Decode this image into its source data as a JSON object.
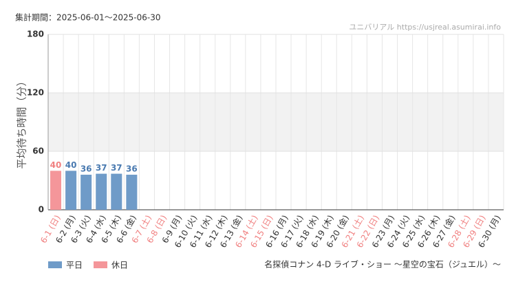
{
  "chart_data": {
    "type": "bar",
    "title": "集計期間：2025-06-01〜2025-06-30",
    "watermark": "ユニバリアル  https://usjreal.asumirai.info",
    "y_label": "平均待ち時間（分）",
    "subtitle": "名探偵コナン 4-D ライブ・ショー ～星空の宝石（ジュエル）～",
    "categories": [
      "6-1 (日)",
      "6-2 (月)",
      "6-3 (火)",
      "6-4 (水)",
      "6-5 (木)",
      "6-6 (金)",
      "6-7 (土)",
      "6-8 (日)",
      "6-9 (月)",
      "6-10 (火)",
      "6-11 (水)",
      "6-12 (木)",
      "6-13 (金)",
      "6-14 (土)",
      "6-15 (日)",
      "6-16 (月)",
      "6-17 (火)",
      "6-18 (水)",
      "6-19 (木)",
      "6-20 (金)",
      "6-21 (土)",
      "6-22 (日)",
      "6-23 (月)",
      "6-24 (火)",
      "6-25 (水)",
      "6-26 (木)",
      "6-27 (金)",
      "6-28 (土)",
      "6-29 (日)",
      "6-30 (月)"
    ],
    "label_colors": [
      "#f08080",
      "#333333",
      "#333333",
      "#333333",
      "#333333",
      "#333333",
      "#f08080",
      "#f08080",
      "#333333",
      "#333333",
      "#333333",
      "#333333",
      "#333333",
      "#f08080",
      "#f08080",
      "#333333",
      "#333333",
      "#333333",
      "#333333",
      "#333333",
      "#f08080",
      "#f08080",
      "#333333",
      "#333333",
      "#333333",
      "#333333",
      "#333333",
      "#f08080",
      "#f08080",
      "#333333"
    ],
    "series": [
      {
        "name": "平日",
        "color": "#6f9bc8",
        "label_color": "#4a7ab0",
        "values": [
          null,
          40,
          36,
          37,
          37,
          36,
          null,
          null,
          null,
          null,
          null,
          null,
          null,
          null,
          null,
          null,
          null,
          null,
          null,
          null,
          null,
          null,
          null,
          null,
          null,
          null,
          null,
          null,
          null,
          null
        ]
      },
      {
        "name": "休日",
        "color": "#f4969a",
        "label_color": "#f08080",
        "values": [
          40,
          null,
          null,
          null,
          null,
          null,
          null,
          null,
          null,
          null,
          null,
          null,
          null,
          null,
          null,
          null,
          null,
          null,
          null,
          null,
          null,
          null,
          null,
          null,
          null,
          null,
          null,
          null,
          null,
          null
        ]
      }
    ],
    "ylim": [
      0,
      180
    ],
    "yticks": [
      0,
      60,
      120,
      180
    ],
    "grid": true,
    "band": [
      60,
      120
    ]
  }
}
